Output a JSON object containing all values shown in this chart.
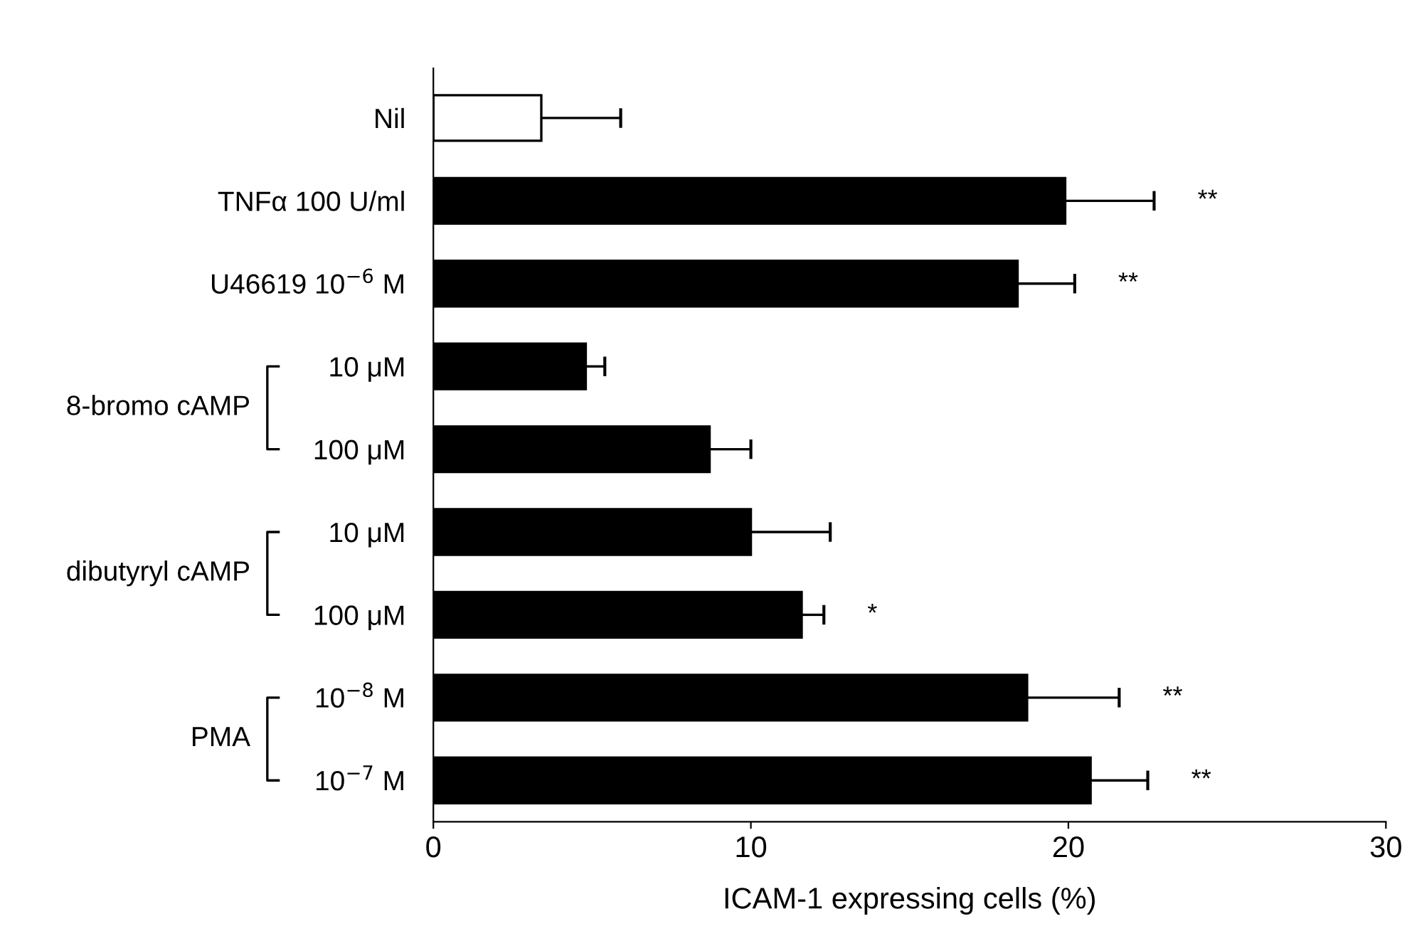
{
  "chart_data": {
    "type": "bar",
    "orientation": "horizontal",
    "xlabel": "ICAM-1 expressing cells (%)",
    "categories": [
      "Nil",
      "TNFα 100 U/ml",
      "U46619 10$^{−6}$ M",
      "10 μM",
      "100 μM",
      "10 μM",
      "100 μM",
      "10$^{−8}$ M",
      "10$^{−7}$ M"
    ],
    "values": [
      3.4,
      19.9,
      18.4,
      4.8,
      8.7,
      10.0,
      11.6,
      18.7,
      20.7
    ],
    "errors": [
      [
        3.4,
        5.9
      ],
      [
        19.9,
        22.7
      ],
      [
        18.4,
        20.2
      ],
      [
        4.8,
        5.4
      ],
      [
        8.7,
        10.0
      ],
      [
        10.0,
        12.5
      ],
      [
        11.6,
        12.3
      ],
      [
        18.7,
        21.6
      ],
      [
        20.7,
        22.5
      ]
    ],
    "colors": [
      "#ffffff",
      "#000000",
      "#000000",
      "#000000",
      "#000000",
      "#000000",
      "#000000",
      "#000000",
      "#000000"
    ],
    "xlim": [
      0,
      30
    ],
    "xticks": [
      0,
      10,
      20,
      30
    ],
    "grid": false,
    "legend": false,
    "annotations": [
      "8-bromo cAMP",
      "dibutyryl cAMP",
      "PMA",
      "**",
      "**",
      "*",
      "**",
      "**"
    ]
  }
}
